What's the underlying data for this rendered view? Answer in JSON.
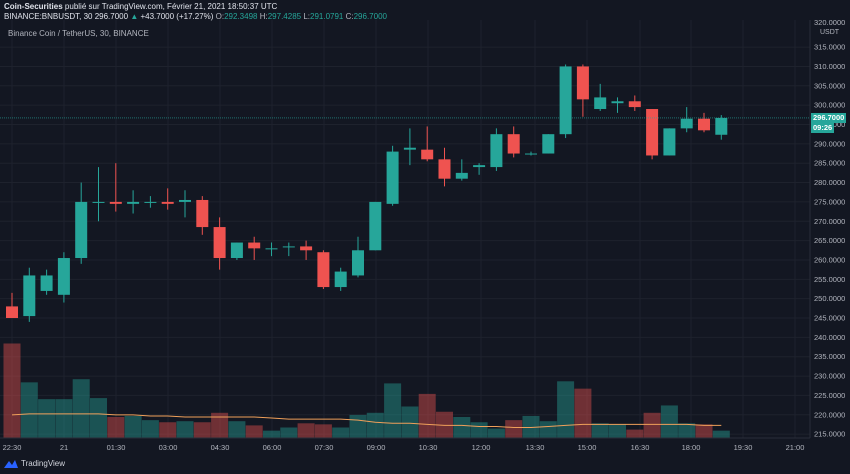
{
  "header": {
    "publisher": "Coin-Securities",
    "published_text": "publié sur TradingView.com, Février 21, 2021 18:50:37 UTC",
    "symbol_line": "BINANCE:BNBUSDT, 30",
    "last": "296.7000",
    "change": "+43.7000 (+17.27%)",
    "o_label": "O:",
    "o_value": "292.3498",
    "h_label": "H:",
    "h_value": "297.4285",
    "l_label": "L:",
    "l_value": "291.0791",
    "c_label": "C:",
    "c_value": "296.7000"
  },
  "subtitle": "Binance Coin / TetherUS, 30, BINANCE",
  "price_badge": "296.7000",
  "countdown_badge": "09:26",
  "unit_label": "USDT",
  "footer": {
    "brand": "TradingView"
  },
  "colors": {
    "up": "#26a69a",
    "down": "#ef5350",
    "background": "#131722",
    "ma": "#f0a05a"
  },
  "chart_data": {
    "type": "candlestick",
    "y_axis": {
      "range": [
        214,
        322
      ],
      "ticks": [
        "315.0000",
        "310.0000",
        "305.0000",
        "300.0000",
        "295.0000",
        "290.0000",
        "285.0000",
        "280.0000",
        "275.0000",
        "270.0000",
        "265.0000",
        "260.0000",
        "255.0000",
        "250.0000",
        "245.0000",
        "240.0000",
        "235.0000",
        "230.0000",
        "225.0000",
        "220.0000",
        "215.0000"
      ],
      "partial_top_tick": "320.0000"
    },
    "x_axis": {
      "ticks": [
        "22:30",
        "21",
        "01:30",
        "03:00",
        "04:30",
        "06:00",
        "07:30",
        "09:00",
        "10:30",
        "12:00",
        "13:30",
        "15:00",
        "16:30",
        "18:00",
        "19:30",
        "21:00"
      ]
    },
    "candles": [
      {
        "o": 248.0,
        "h": 251.5,
        "l": 245.0,
        "c": 245.0
      },
      {
        "o": 245.5,
        "h": 258.0,
        "l": 244.0,
        "c": 256.0
      },
      {
        "o": 252.0,
        "h": 257.5,
        "l": 251.0,
        "c": 256.0
      },
      {
        "o": 251.0,
        "h": 262.0,
        "l": 249.0,
        "c": 260.5
      },
      {
        "o": 260.5,
        "h": 280.0,
        "l": 259.0,
        "c": 275.0
      },
      {
        "o": 275.0,
        "h": 284.0,
        "l": 270.0,
        "c": 275.0
      },
      {
        "o": 275.0,
        "h": 285.0,
        "l": 272.5,
        "c": 274.5
      },
      {
        "o": 274.5,
        "h": 278.0,
        "l": 272.0,
        "c": 275.0
      },
      {
        "o": 275.0,
        "h": 276.5,
        "l": 273.5,
        "c": 275.0
      },
      {
        "o": 275.0,
        "h": 278.5,
        "l": 273.0,
        "c": 274.5
      },
      {
        "o": 275.0,
        "h": 278.0,
        "l": 271.0,
        "c": 275.5
      },
      {
        "o": 275.5,
        "h": 276.5,
        "l": 266.5,
        "c": 268.5
      },
      {
        "o": 268.5,
        "h": 271.0,
        "l": 257.5,
        "c": 260.5
      },
      {
        "o": 260.5,
        "h": 264.5,
        "l": 260.0,
        "c": 264.5
      },
      {
        "o": 264.5,
        "h": 266.0,
        "l": 260.0,
        "c": 263.0
      },
      {
        "o": 263.0,
        "h": 264.5,
        "l": 261.0,
        "c": 263.0
      },
      {
        "o": 263.5,
        "h": 264.5,
        "l": 261.0,
        "c": 263.5
      },
      {
        "o": 263.5,
        "h": 265.0,
        "l": 260.0,
        "c": 262.5
      },
      {
        "o": 262.0,
        "h": 262.5,
        "l": 252.5,
        "c": 253.0
      },
      {
        "o": 253.0,
        "h": 258.0,
        "l": 252.0,
        "c": 257.0
      },
      {
        "o": 256.0,
        "h": 266.0,
        "l": 255.5,
        "c": 262.5
      },
      {
        "o": 262.5,
        "h": 275.0,
        "l": 262.5,
        "c": 275.0
      },
      {
        "o": 274.5,
        "h": 289.5,
        "l": 274.0,
        "c": 288.0
      },
      {
        "o": 288.5,
        "h": 294.0,
        "l": 284.5,
        "c": 289.0
      },
      {
        "o": 288.5,
        "h": 294.5,
        "l": 285.5,
        "c": 286.0
      },
      {
        "o": 286.0,
        "h": 289.0,
        "l": 279.0,
        "c": 281.0
      },
      {
        "o": 281.0,
        "h": 286.0,
        "l": 280.5,
        "c": 282.5
      },
      {
        "o": 284.0,
        "h": 285.0,
        "l": 282.0,
        "c": 284.5
      },
      {
        "o": 284.0,
        "h": 294.0,
        "l": 283.0,
        "c": 292.5
      },
      {
        "o": 292.5,
        "h": 294.5,
        "l": 286.5,
        "c": 287.5
      },
      {
        "o": 287.5,
        "h": 288.0,
        "l": 287.0,
        "c": 287.5
      },
      {
        "o": 287.5,
        "h": 292.5,
        "l": 287.5,
        "c": 292.5
      },
      {
        "o": 292.5,
        "h": 310.5,
        "l": 291.5,
        "c": 310.0
      },
      {
        "o": 310.0,
        "h": 310.5,
        "l": 297.0,
        "c": 301.5
      },
      {
        "o": 299.0,
        "h": 305.5,
        "l": 298.5,
        "c": 302.0
      },
      {
        "o": 300.5,
        "h": 302.0,
        "l": 298.0,
        "c": 301.0
      },
      {
        "o": 301.0,
        "h": 302.5,
        "l": 298.5,
        "c": 299.5
      },
      {
        "o": 299.0,
        "h": 299.0,
        "l": 286.0,
        "c": 287.0
      },
      {
        "o": 287.0,
        "h": 294.0,
        "l": 287.0,
        "c": 294.0
      },
      {
        "o": 294.0,
        "h": 299.5,
        "l": 293.0,
        "c": 296.5
      },
      {
        "o": 296.5,
        "h": 298.0,
        "l": 293.0,
        "c": 293.5
      },
      {
        "o": 292.3498,
        "h": 297.4285,
        "l": 291.0791,
        "c": 296.7
      }
    ],
    "volume": {
      "bar_levels": [
        0.9,
        0.53,
        0.37,
        0.37,
        0.56,
        0.38,
        0.2,
        0.21,
        0.17,
        0.15,
        0.16,
        0.15,
        0.24,
        0.16,
        0.12,
        0.07,
        0.1,
        0.14,
        0.13,
        0.1,
        0.22,
        0.24,
        0.52,
        0.3,
        0.42,
        0.25,
        0.2,
        0.15,
        0.09,
        0.17,
        0.21,
        0.16,
        0.54,
        0.47,
        0.14,
        0.13,
        0.08,
        0.24,
        0.31,
        0.14,
        0.13,
        0.07
      ],
      "ma_levels": [
        0.22,
        0.23,
        0.23,
        0.23,
        0.23,
        0.23,
        0.22,
        0.22,
        0.21,
        0.21,
        0.2,
        0.2,
        0.2,
        0.2,
        0.2,
        0.19,
        0.18,
        0.18,
        0.18,
        0.18,
        0.17,
        0.15,
        0.14,
        0.14,
        0.13,
        0.12,
        0.12,
        0.11,
        0.11,
        0.1,
        0.1,
        0.11,
        0.12,
        0.13,
        0.13,
        0.13,
        0.13,
        0.13,
        0.13,
        0.13,
        0.12,
        0.12
      ]
    }
  }
}
